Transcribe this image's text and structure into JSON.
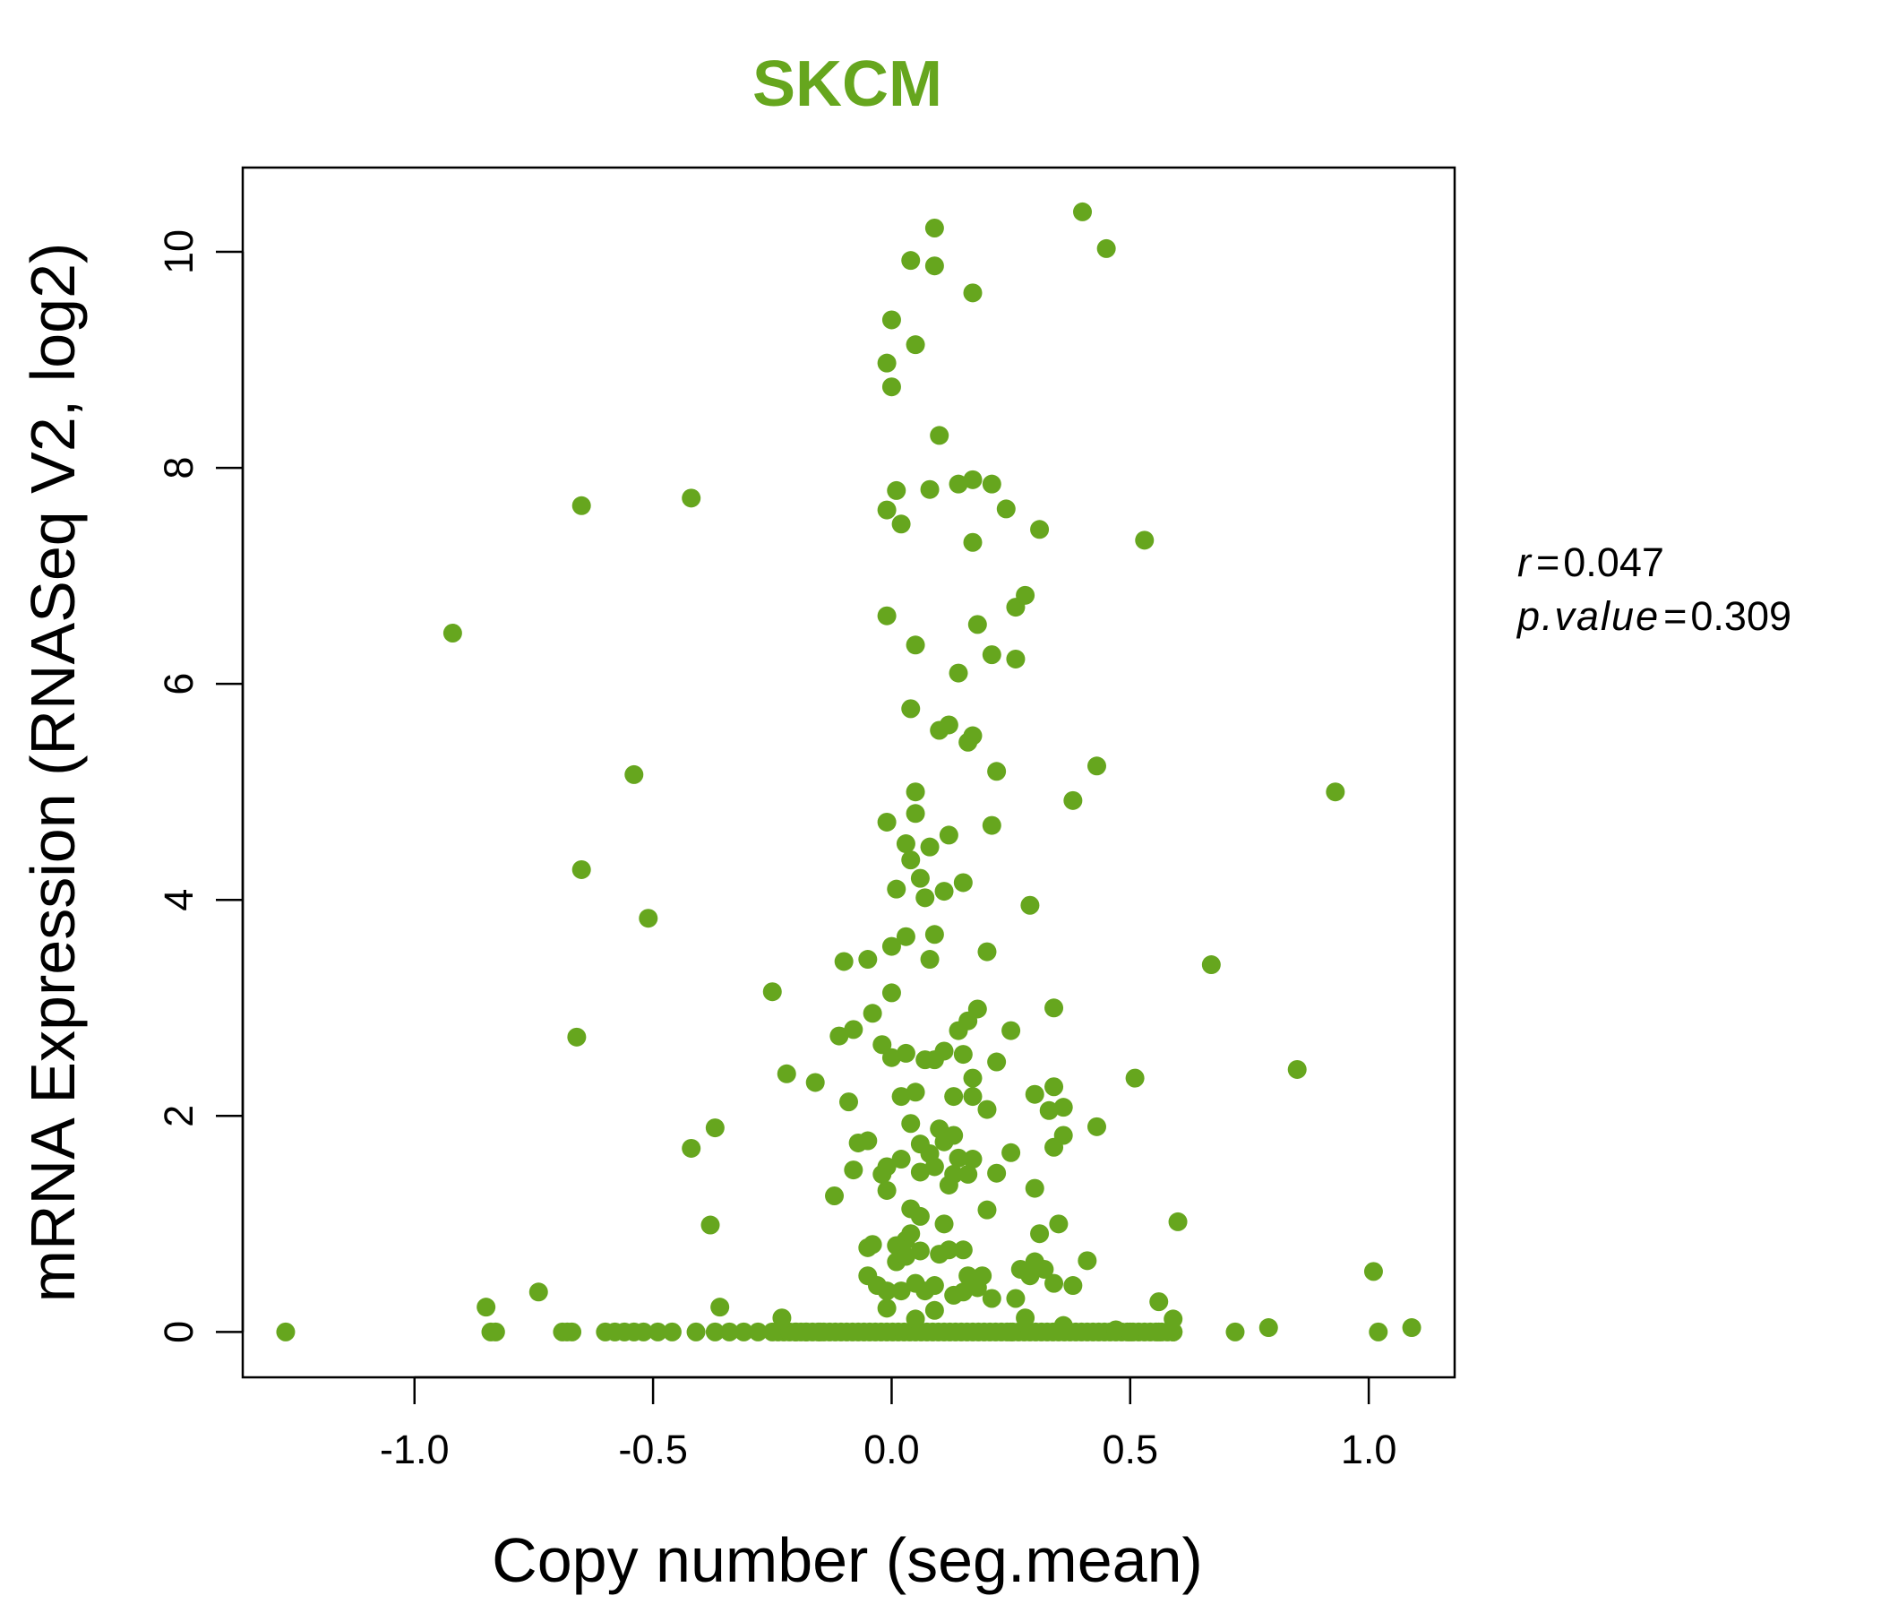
{
  "chart_data": {
    "type": "scatter",
    "title": "SKCM",
    "title_color": "#66A61E",
    "point_color": "#66A61E",
    "xlabel": "Copy number (seg.mean)",
    "ylabel": "mRNA Expression (RNASeq V2, log2)",
    "xlim": [
      -1.36,
      1.18
    ],
    "ylim": [
      -0.42,
      10.78
    ],
    "xticks": [
      -1.0,
      -0.5,
      0.0,
      0.5,
      1.0
    ],
    "xtick_labels": [
      "-1.0",
      "-0.5",
      "0.0",
      "0.5",
      "1.0"
    ],
    "yticks": [
      0,
      2,
      4,
      6,
      8,
      10
    ],
    "ytick_labels": [
      "0",
      "2",
      "4",
      "6",
      "8",
      "10"
    ],
    "grid": false,
    "stats": {
      "r_label": "r",
      "r_value": "0.047",
      "p_label": "p.value",
      "p_value": "0.309"
    },
    "points": [
      [
        -1.27,
        0.0
      ],
      [
        -0.92,
        6.47
      ],
      [
        -0.85,
        0.23
      ],
      [
        -0.84,
        0.0
      ],
      [
        -0.83,
        0.0
      ],
      [
        -0.74,
        0.37
      ],
      [
        -0.69,
        0.0
      ],
      [
        -0.68,
        0.0
      ],
      [
        -0.67,
        0.0
      ],
      [
        -0.66,
        2.73
      ],
      [
        -0.65,
        4.28
      ],
      [
        -0.65,
        7.65
      ],
      [
        -0.6,
        0.0
      ],
      [
        -0.58,
        0.0
      ],
      [
        -0.56,
        0.0
      ],
      [
        -0.54,
        0.0
      ],
      [
        -0.54,
        5.16
      ],
      [
        -0.52,
        0.0
      ],
      [
        -0.51,
        3.83
      ],
      [
        -0.49,
        0.0
      ],
      [
        -0.46,
        0.0
      ],
      [
        -0.42,
        7.72
      ],
      [
        -0.42,
        1.7
      ],
      [
        -0.41,
        0.0
      ],
      [
        -0.38,
        0.99
      ],
      [
        -0.37,
        1.89
      ],
      [
        -0.36,
        0.23
      ],
      [
        -0.37,
        0.0
      ],
      [
        -0.34,
        0.0
      ],
      [
        -0.31,
        0.0
      ],
      [
        -0.28,
        0.0
      ],
      [
        -0.25,
        3.15
      ],
      [
        -0.23,
        0.13
      ],
      [
        -0.22,
        2.39
      ],
      [
        -0.2,
        0.0
      ],
      [
        -0.18,
        0.0
      ],
      [
        -0.16,
        2.31
      ],
      [
        -0.15,
        0.0
      ],
      [
        -0.12,
        1.26
      ],
      [
        -0.11,
        2.74
      ],
      [
        -0.1,
        3.43
      ],
      [
        -0.09,
        2.13
      ],
      [
        -0.08,
        1.5
      ],
      [
        -0.08,
        2.8
      ],
      [
        -0.07,
        1.75
      ],
      [
        -0.05,
        3.45
      ],
      [
        -0.05,
        1.77
      ],
      [
        -0.04,
        2.95
      ],
      [
        -0.05,
        0.52
      ],
      [
        -0.05,
        0.78
      ],
      [
        -0.04,
        0.81
      ],
      [
        -0.03,
        0.43
      ],
      [
        -0.02,
        1.46
      ],
      [
        -0.02,
        2.66
      ],
      [
        -0.01,
        4.72
      ],
      [
        -0.01,
        1.31
      ],
      [
        -0.01,
        1.53
      ],
      [
        -0.01,
        0.22
      ],
      [
        -0.01,
        0.38
      ],
      [
        -0.01,
        6.63
      ],
      [
        -0.01,
        7.61
      ],
      [
        -0.01,
        8.97
      ],
      [
        0.0,
        8.75
      ],
      [
        0.0,
        9.37
      ],
      [
        0.0,
        3.57
      ],
      [
        0.0,
        3.14
      ],
      [
        0.0,
        2.54
      ],
      [
        0.01,
        4.1
      ],
      [
        0.01,
        7.79
      ],
      [
        0.01,
        0.65
      ],
      [
        0.01,
        0.8
      ],
      [
        0.02,
        7.48
      ],
      [
        0.02,
        2.18
      ],
      [
        0.02,
        0.38
      ],
      [
        0.02,
        1.6
      ],
      [
        0.03,
        4.52
      ],
      [
        0.03,
        3.66
      ],
      [
        0.03,
        2.58
      ],
      [
        0.03,
        0.7
      ],
      [
        0.03,
        0.85
      ],
      [
        0.04,
        9.92
      ],
      [
        0.04,
        1.93
      ],
      [
        0.04,
        1.14
      ],
      [
        0.04,
        0.91
      ],
      [
        0.04,
        4.37
      ],
      [
        0.04,
        5.77
      ],
      [
        0.05,
        6.36
      ],
      [
        0.05,
        9.14
      ],
      [
        0.05,
        5.0
      ],
      [
        0.05,
        4.8
      ],
      [
        0.05,
        2.22
      ],
      [
        0.05,
        0.12
      ],
      [
        0.05,
        0.45
      ],
      [
        0.06,
        4.2
      ],
      [
        0.06,
        1.74
      ],
      [
        0.06,
        1.48
      ],
      [
        0.06,
        1.07
      ],
      [
        0.06,
        0.75
      ],
      [
        0.07,
        4.02
      ],
      [
        0.07,
        2.52
      ],
      [
        0.07,
        0.38
      ],
      [
        0.08,
        4.49
      ],
      [
        0.08,
        3.45
      ],
      [
        0.08,
        7.8
      ],
      [
        0.08,
        1.65
      ],
      [
        0.09,
        10.22
      ],
      [
        0.09,
        9.87
      ],
      [
        0.09,
        3.68
      ],
      [
        0.09,
        2.52
      ],
      [
        0.09,
        1.53
      ],
      [
        0.09,
        0.43
      ],
      [
        0.09,
        0.2
      ],
      [
        0.1,
        8.3
      ],
      [
        0.1,
        5.57
      ],
      [
        0.1,
        1.88
      ],
      [
        0.1,
        0.72
      ],
      [
        0.11,
        4.08
      ],
      [
        0.11,
        1.0
      ],
      [
        0.11,
        1.76
      ],
      [
        0.11,
        2.6
      ],
      [
        0.12,
        4.6
      ],
      [
        0.12,
        5.62
      ],
      [
        0.12,
        1.36
      ],
      [
        0.12,
        0.76
      ],
      [
        0.13,
        1.82
      ],
      [
        0.13,
        1.46
      ],
      [
        0.13,
        2.18
      ],
      [
        0.13,
        0.34
      ],
      [
        0.14,
        6.1
      ],
      [
        0.14,
        7.85
      ],
      [
        0.14,
        2.79
      ],
      [
        0.14,
        1.61
      ],
      [
        0.15,
        4.16
      ],
      [
        0.15,
        2.57
      ],
      [
        0.15,
        0.76
      ],
      [
        0.15,
        0.37
      ],
      [
        0.16,
        5.46
      ],
      [
        0.16,
        2.88
      ],
      [
        0.16,
        1.46
      ],
      [
        0.16,
        0.52
      ],
      [
        0.17,
        7.89
      ],
      [
        0.17,
        7.31
      ],
      [
        0.17,
        9.62
      ],
      [
        0.17,
        5.52
      ],
      [
        0.17,
        1.6
      ],
      [
        0.17,
        2.35
      ],
      [
        0.17,
        2.18
      ],
      [
        0.18,
        6.55
      ],
      [
        0.18,
        2.99
      ],
      [
        0.18,
        0.41
      ],
      [
        0.19,
        0.52
      ],
      [
        0.2,
        3.52
      ],
      [
        0.2,
        2.06
      ],
      [
        0.2,
        1.13
      ],
      [
        0.21,
        7.85
      ],
      [
        0.21,
        6.27
      ],
      [
        0.21,
        4.69
      ],
      [
        0.21,
        0.31
      ],
      [
        0.22,
        5.19
      ],
      [
        0.22,
        2.5
      ],
      [
        0.22,
        1.47
      ],
      [
        0.24,
        7.62
      ],
      [
        0.25,
        2.79
      ],
      [
        0.25,
        1.66
      ],
      [
        0.25,
        0.0
      ],
      [
        0.26,
        6.71
      ],
      [
        0.26,
        6.23
      ],
      [
        0.26,
        0.31
      ],
      [
        0.27,
        0.58
      ],
      [
        0.28,
        6.82
      ],
      [
        0.28,
        0.13
      ],
      [
        0.29,
        3.95
      ],
      [
        0.29,
        0.52
      ],
      [
        0.3,
        2.2
      ],
      [
        0.3,
        1.33
      ],
      [
        0.3,
        0.65
      ],
      [
        0.31,
        7.43
      ],
      [
        0.31,
        0.91
      ],
      [
        0.32,
        0.58
      ],
      [
        0.33,
        2.05
      ],
      [
        0.34,
        2.27
      ],
      [
        0.34,
        3.0
      ],
      [
        0.34,
        1.71
      ],
      [
        0.34,
        0.45
      ],
      [
        0.35,
        1.0
      ],
      [
        0.36,
        2.08
      ],
      [
        0.36,
        1.82
      ],
      [
        0.36,
        0.06
      ],
      [
        0.38,
        4.92
      ],
      [
        0.38,
        0.43
      ],
      [
        0.4,
        10.37
      ],
      [
        0.41,
        0.66
      ],
      [
        0.43,
        5.24
      ],
      [
        0.43,
        1.9
      ],
      [
        0.45,
        10.03
      ],
      [
        0.47,
        0.02
      ],
      [
        0.5,
        0.0
      ],
      [
        0.51,
        2.35
      ],
      [
        0.53,
        7.33
      ],
      [
        0.56,
        0.0
      ],
      [
        0.56,
        0.28
      ],
      [
        0.59,
        0.0
      ],
      [
        0.59,
        0.12
      ],
      [
        0.6,
        1.02
      ],
      [
        0.67,
        3.4
      ],
      [
        0.72,
        0.0
      ],
      [
        0.79,
        0.04
      ],
      [
        0.85,
        2.43
      ],
      [
        0.93,
        5.0
      ],
      [
        1.01,
        0.56
      ],
      [
        1.02,
        0.0
      ],
      [
        1.09,
        0.04
      ]
    ],
    "zero_band": [
      -0.25,
      0.6
    ]
  }
}
